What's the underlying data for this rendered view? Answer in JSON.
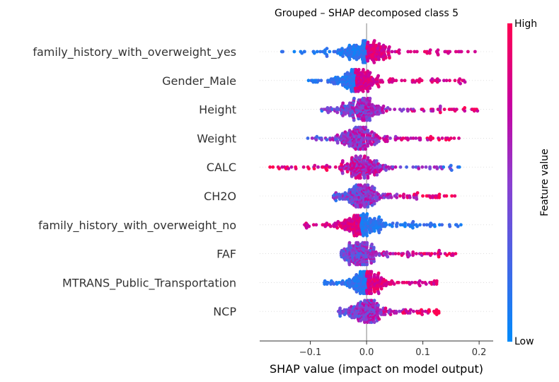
{
  "chart_data": {
    "type": "scatter",
    "subtype": "shap-beeswarm",
    "title": "Grouped – SHAP decomposed class 5",
    "xlabel": "SHAP value (impact on model output)",
    "ylabel": "",
    "xlim": [
      -0.19,
      0.225
    ],
    "xticks": [
      -0.1,
      0.0,
      0.1,
      0.2
    ],
    "xtick_labels": [
      "−0.1",
      "0.0",
      "0.1",
      "0.2"
    ],
    "grid": false,
    "colorbar": {
      "label": "Feature value",
      "high_label": "High",
      "low_label": "Low",
      "low_color": "#008bfb",
      "high_color": "#ff0051"
    },
    "features": [
      {
        "name": "family_history_with_overweight_yes",
        "min": -0.155,
        "max": 0.205,
        "peak": 0.0,
        "spread": 0.06,
        "high_side": "right",
        "binary": true
      },
      {
        "name": "Gender_Male",
        "min": -0.105,
        "max": 0.18,
        "peak": -0.02,
        "spread": 0.045,
        "high_side": "right",
        "binary": true
      },
      {
        "name": "Height",
        "min": -0.08,
        "max": 0.2,
        "peak": -0.01,
        "spread": 0.045,
        "high_side": "right",
        "binary": false
      },
      {
        "name": "Weight",
        "min": -0.105,
        "max": 0.165,
        "peak": -0.015,
        "spread": 0.045,
        "high_side": "right",
        "binary": false
      },
      {
        "name": "CALC",
        "min": -0.175,
        "max": 0.165,
        "peak": -0.01,
        "spread": 0.045,
        "high_side": "left",
        "binary": false
      },
      {
        "name": "CH2O",
        "min": -0.06,
        "max": 0.165,
        "peak": -0.01,
        "spread": 0.04,
        "high_side": "right",
        "binary": false
      },
      {
        "name": "family_history_with_overweight_no",
        "min": -0.115,
        "max": 0.17,
        "peak": -0.01,
        "spread": 0.045,
        "high_side": "left",
        "binary": true
      },
      {
        "name": "FAF",
        "min": -0.045,
        "max": 0.16,
        "peak": -0.01,
        "spread": 0.035,
        "high_side": "right",
        "binary": false
      },
      {
        "name": "MTRANS_Public_Transportation",
        "min": -0.075,
        "max": 0.125,
        "peak": 0.0,
        "spread": 0.035,
        "high_side": "right",
        "binary": true
      },
      {
        "name": "NCP",
        "min": -0.05,
        "max": 0.13,
        "peak": 0.0,
        "spread": 0.035,
        "high_side": "right",
        "binary": false
      }
    ]
  }
}
